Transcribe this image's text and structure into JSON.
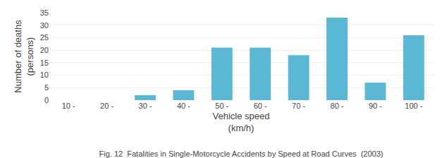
{
  "chart_data": {
    "type": "bar",
    "title": "Fig. 12  Fatalities in Single-Motorcycle Accidents by Speed at Road Curves  (2003)",
    "xlabel": [
      "Vehicle speed",
      "(km/h)"
    ],
    "ylabel": [
      "Number of deaths",
      "(persons)"
    ],
    "categories": [
      "10 -",
      "20 -",
      "30 -",
      "40 -",
      "50 -",
      "60 -",
      "70 -",
      "80 -",
      "90 -",
      "100 -"
    ],
    "values": [
      0,
      0,
      2,
      4,
      21,
      21,
      18,
      33,
      7,
      26
    ],
    "color": "#5BB8D4",
    "ylim": [
      0,
      35
    ],
    "yticks": [
      0,
      5,
      10,
      15,
      20,
      25,
      30,
      35
    ],
    "grid": true
  }
}
